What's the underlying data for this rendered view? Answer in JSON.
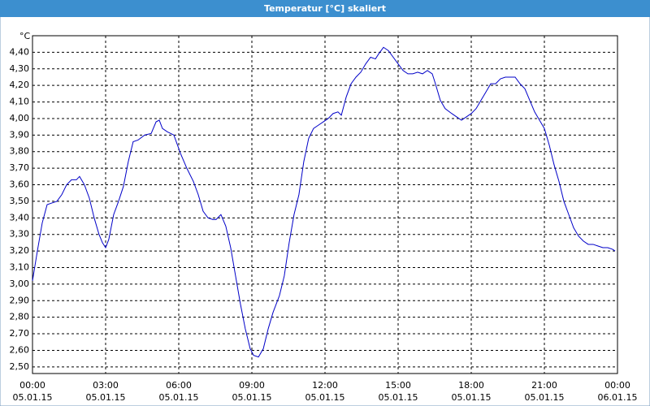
{
  "chart_data": {
    "type": "line",
    "title": "Temperatur [°C] skaliert",
    "y_unit": "°C",
    "x": [
      0,
      0.2,
      0.4,
      0.6,
      0.8,
      1.0,
      1.2,
      1.4,
      1.6,
      1.8,
      1.93,
      2.13,
      2.33,
      2.53,
      2.73,
      2.87,
      3.0,
      3.13,
      3.33,
      3.53,
      3.73,
      3.93,
      4.13,
      4.33,
      4.6,
      4.87,
      5.07,
      5.2,
      5.33,
      5.53,
      5.8,
      6.07,
      6.33,
      6.6,
      6.8,
      7.0,
      7.2,
      7.4,
      7.53,
      7.73,
      7.93,
      8.13,
      8.33,
      8.53,
      8.73,
      8.93,
      9.07,
      9.27,
      9.47,
      9.67,
      9.87,
      10.13,
      10.33,
      10.53,
      10.73,
      10.93,
      11.13,
      11.33,
      11.53,
      11.73,
      11.93,
      12.13,
      12.33,
      12.53,
      12.67,
      12.87,
      13.07,
      13.27,
      13.47,
      13.67,
      13.87,
      14.07,
      14.2,
      14.4,
      14.6,
      14.8,
      15.0,
      15.2,
      15.4,
      15.6,
      15.8,
      16.0,
      16.2,
      16.4,
      16.53,
      16.73,
      16.93,
      17.2,
      17.4,
      17.6,
      17.8,
      18.0,
      18.2,
      18.4,
      18.6,
      18.8,
      19.0,
      19.2,
      19.4,
      19.6,
      19.8,
      20.0,
      20.2,
      20.4,
      20.6,
      20.8,
      21.0,
      21.2,
      21.4,
      21.6,
      21.8,
      22.0,
      22.2,
      22.4,
      22.6,
      22.8,
      23.0,
      23.2,
      23.4,
      23.6,
      23.8,
      23.9
    ],
    "series": [
      {
        "color": "#0000c8",
        "values": [
          3.02,
          3.2,
          3.37,
          3.48,
          3.49,
          3.5,
          3.54,
          3.6,
          3.63,
          3.63,
          3.65,
          3.6,
          3.52,
          3.4,
          3.3,
          3.25,
          3.22,
          3.27,
          3.42,
          3.5,
          3.59,
          3.74,
          3.86,
          3.87,
          3.9,
          3.91,
          3.98,
          3.99,
          3.94,
          3.92,
          3.9,
          3.79,
          3.7,
          3.62,
          3.54,
          3.44,
          3.4,
          3.39,
          3.39,
          3.42,
          3.35,
          3.22,
          3.05,
          2.88,
          2.73,
          2.61,
          2.57,
          2.56,
          2.61,
          2.73,
          2.83,
          2.93,
          3.05,
          3.25,
          3.42,
          3.54,
          3.74,
          3.88,
          3.94,
          3.96,
          3.98,
          4.0,
          4.03,
          4.04,
          4.02,
          4.13,
          4.21,
          4.25,
          4.28,
          4.33,
          4.37,
          4.36,
          4.39,
          4.43,
          4.41,
          4.37,
          4.33,
          4.29,
          4.27,
          4.27,
          4.28,
          4.27,
          4.29,
          4.27,
          4.21,
          4.11,
          4.06,
          4.03,
          4.01,
          3.99,
          4.01,
          4.03,
          4.06,
          4.11,
          4.16,
          4.21,
          4.21,
          4.24,
          4.25,
          4.25,
          4.25,
          4.21,
          4.18,
          4.11,
          4.04,
          3.99,
          3.94,
          3.84,
          3.72,
          3.62,
          3.5,
          3.42,
          3.34,
          3.29,
          3.26,
          3.24,
          3.24,
          3.23,
          3.22,
          3.22,
          3.21,
          3.2
        ]
      }
    ],
    "xlim": [
      0,
      24
    ],
    "xticks": [
      {
        "value": 0,
        "label": "00:00",
        "date": "05.01.15"
      },
      {
        "value": 3,
        "label": "03:00",
        "date": "05.01.15"
      },
      {
        "value": 6,
        "label": "06:00",
        "date": "05.01.15"
      },
      {
        "value": 9,
        "label": "09:00",
        "date": "05.01.15"
      },
      {
        "value": 12,
        "label": "12:00",
        "date": "05.01.15"
      },
      {
        "value": 15,
        "label": "15:00",
        "date": "05.01.15"
      },
      {
        "value": 18,
        "label": "18:00",
        "date": "05.01.15"
      },
      {
        "value": 21,
        "label": "21:00",
        "date": "05.01.15"
      },
      {
        "value": 24,
        "label": "00:00",
        "date": "06.01.15"
      }
    ],
    "ylim": [
      2.46,
      4.5
    ],
    "yticks": [
      {
        "value": 2.5,
        "label": "2,50"
      },
      {
        "value": 2.6,
        "label": "2,60"
      },
      {
        "value": 2.7,
        "label": "2,70"
      },
      {
        "value": 2.8,
        "label": "2,80"
      },
      {
        "value": 2.9,
        "label": "2,90"
      },
      {
        "value": 3.0,
        "label": "3,00"
      },
      {
        "value": 3.1,
        "label": "3,10"
      },
      {
        "value": 3.2,
        "label": "3,20"
      },
      {
        "value": 3.3,
        "label": "3,30"
      },
      {
        "value": 3.4,
        "label": "3,40"
      },
      {
        "value": 3.5,
        "label": "3,50"
      },
      {
        "value": 3.6,
        "label": "3,60"
      },
      {
        "value": 3.7,
        "label": "3,70"
      },
      {
        "value": 3.8,
        "label": "3,80"
      },
      {
        "value": 3.9,
        "label": "3,90"
      },
      {
        "value": 4.0,
        "label": "4,00"
      },
      {
        "value": 4.1,
        "label": "4,10"
      },
      {
        "value": 4.2,
        "label": "4,20"
      },
      {
        "value": 4.3,
        "label": "4,30"
      },
      {
        "value": 4.4,
        "label": "4,40"
      }
    ],
    "grid": true
  }
}
